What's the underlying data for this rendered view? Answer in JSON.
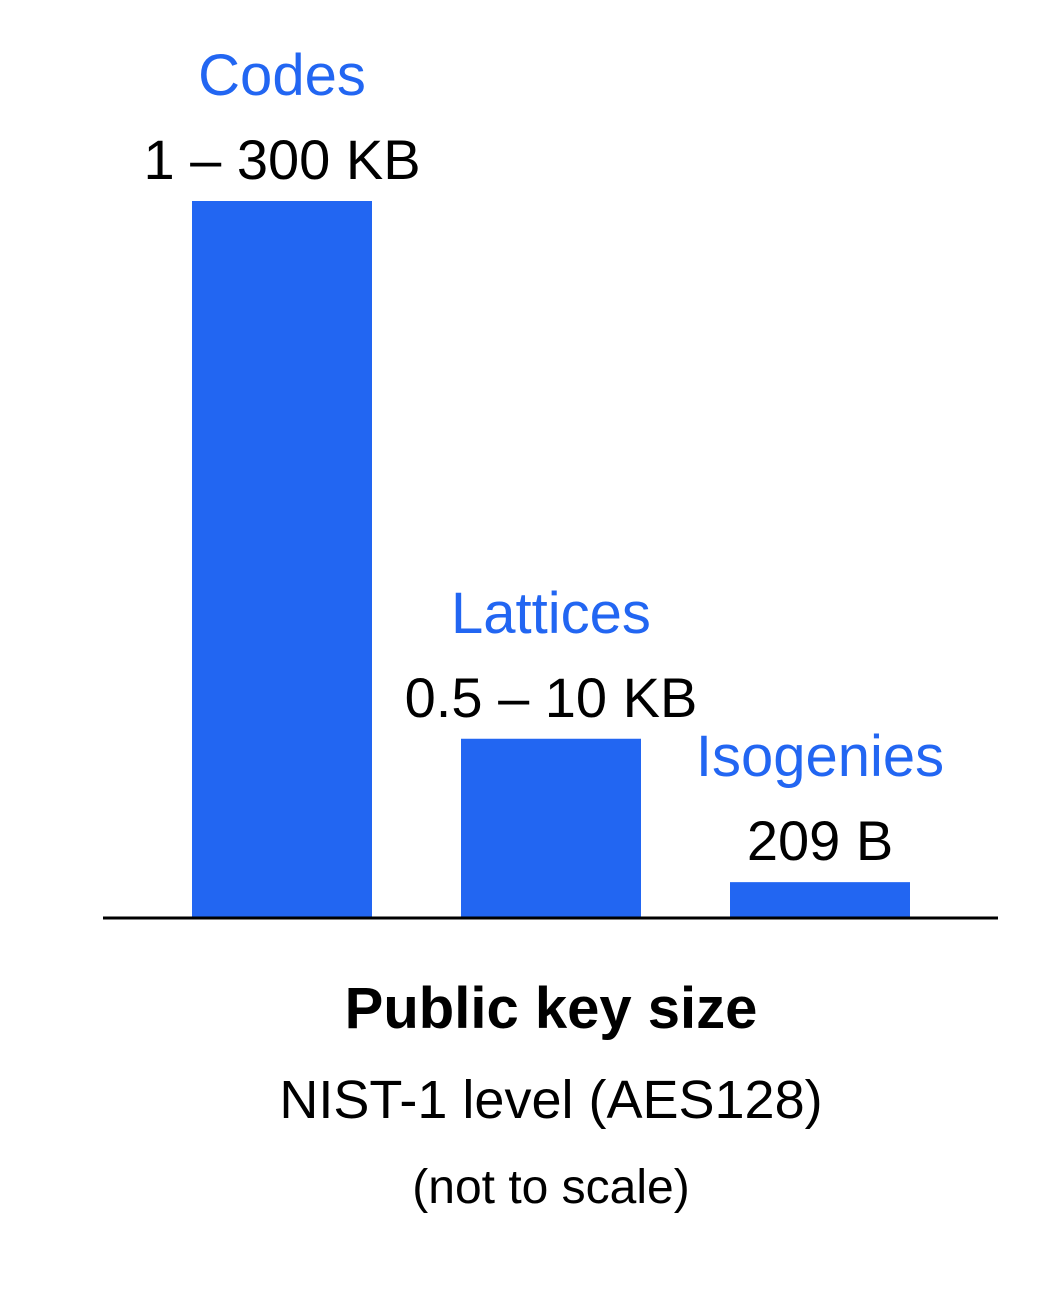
{
  "chart_data": {
    "type": "bar",
    "categories": [
      "Codes",
      "Lattices",
      "Isogenies"
    ],
    "value_labels": [
      "1 – 300 KB",
      "0.5 – 10 KB",
      "209 B"
    ],
    "values": [
      100,
      25,
      5
    ],
    "ylim": [
      0,
      100
    ],
    "xlabel": "Public key size",
    "notes": [
      "NIST-1 level (AES128)",
      "(not to scale)"
    ],
    "grid": false,
    "legend": "none",
    "bar_color": "#2266F2",
    "label_color": "#2266F2",
    "axis_color": "#000000"
  }
}
